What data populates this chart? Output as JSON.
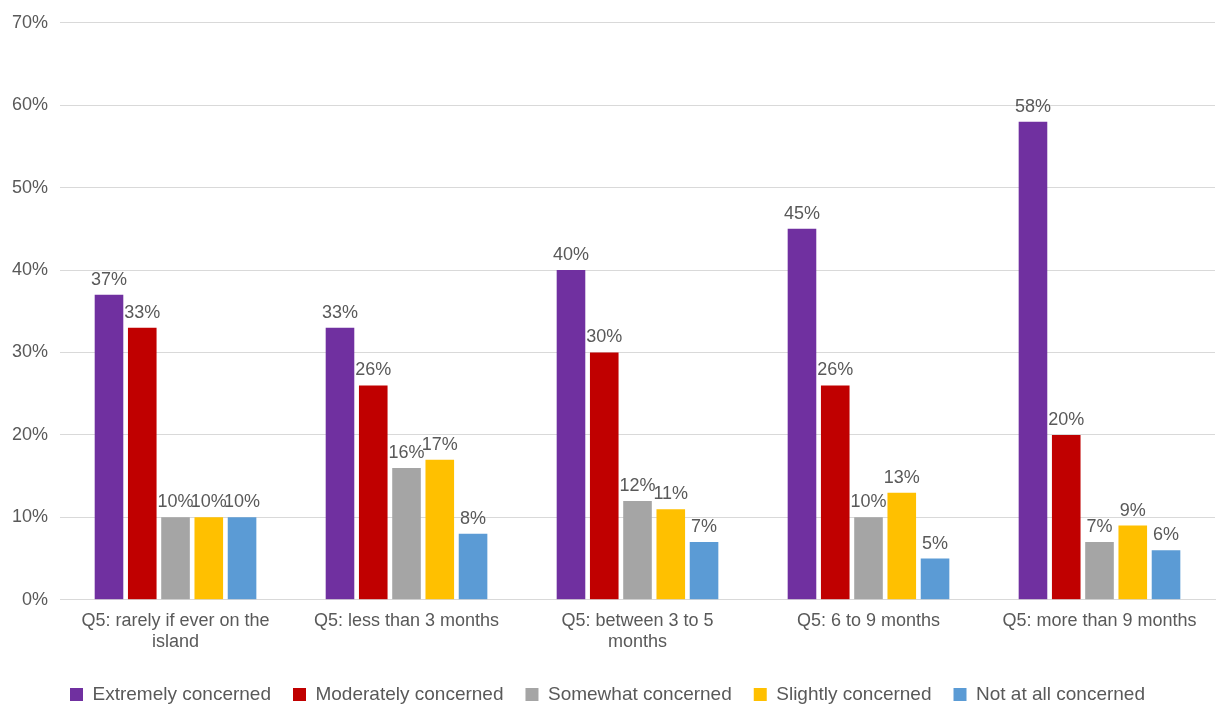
{
  "chart_data": {
    "type": "bar",
    "categories": [
      "Q5: rarely if ever on the island",
      "Q5: less than 3 months",
      "Q5: between 3 to 5 months",
      "Q5: 6 to 9 months",
      "Q5: more than 9 months"
    ],
    "series": [
      {
        "name": "Extremely concerned",
        "color": "#7030a0",
        "values": [
          37,
          33,
          40,
          45,
          58
        ],
        "value_labels": [
          "37%",
          "33%",
          "40%",
          "45%",
          "58%"
        ]
      },
      {
        "name": "Moderately concerned",
        "color": "#c00000",
        "values": [
          33,
          26,
          30,
          26,
          20
        ],
        "value_labels": [
          "33%",
          "26%",
          "30%",
          "26%",
          "20%"
        ]
      },
      {
        "name": "Somewhat concerned",
        "color": "#a5a5a5",
        "values": [
          10,
          16,
          12,
          10,
          7
        ],
        "value_labels": [
          "10%",
          "16%",
          "12%",
          "10%",
          "7%"
        ]
      },
      {
        "name": "Slightly concerned",
        "color": "#ffc000",
        "values": [
          10,
          17,
          11,
          13,
          9
        ],
        "value_labels": [
          "10%",
          "17%",
          "11%",
          "13%",
          "9%"
        ]
      },
      {
        "name": "Not at all concerned",
        "color": "#5b9bd5",
        "values": [
          10,
          8,
          7,
          5,
          6
        ],
        "value_labels": [
          "10%",
          "8%",
          "7%",
          "5%",
          "6%"
        ]
      }
    ],
    "ylim": [
      0,
      70
    ],
    "yticks": [
      {
        "value": 0,
        "label": "0%"
      },
      {
        "value": 10,
        "label": "10%"
      },
      {
        "value": 20,
        "label": "20%"
      },
      {
        "value": 30,
        "label": "30%"
      },
      {
        "value": 40,
        "label": "40%"
      },
      {
        "value": 50,
        "label": "50%"
      },
      {
        "value": 60,
        "label": "60%"
      },
      {
        "value": 70,
        "label": "70%"
      }
    ],
    "grid": "y",
    "legend": "bottom"
  }
}
